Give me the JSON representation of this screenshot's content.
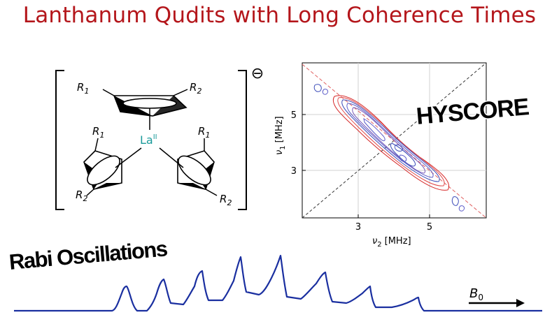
{
  "title": "Lanthanum Qudits with Long Coherence Times",
  "structure": {
    "substituents": [
      "R",
      "R",
      "R",
      "R",
      "R",
      "R"
    ],
    "substituent_subscripts": [
      "1",
      "2",
      "1",
      "1",
      "2",
      "2"
    ],
    "metal": "La",
    "metal_oxidation": "II",
    "charge_symbol": "⊖"
  },
  "hyscore": {
    "label": "HYSCORE",
    "xlabel_symbol": "ν",
    "xlabel_sub": "2",
    "xlabel_unit": "[MHz]",
    "ylabel_symbol": "ν",
    "ylabel_sub": "1",
    "ylabel_unit": "[MHz]",
    "xticks": [
      "3",
      "5"
    ],
    "yticks": [
      "5",
      "3"
    ]
  },
  "rabi": {
    "label": "Rabi Oscillations",
    "field_symbol": "B",
    "field_sub": "0"
  },
  "colors": {
    "title": "#b4161b",
    "trace": "#1a2fa0",
    "contour_red": "#d62828",
    "contour_blue": "#3b4bb8"
  }
}
